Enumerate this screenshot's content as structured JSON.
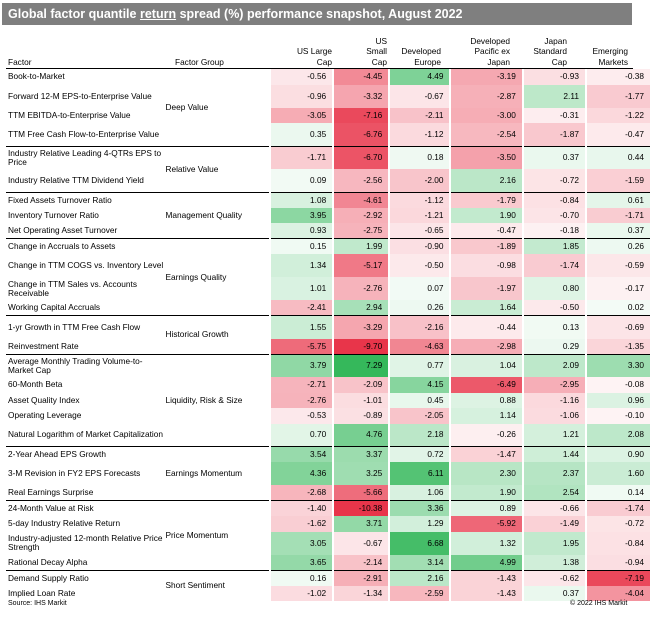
{
  "title_prefix": "Global factor quantile ",
  "title_underlined": "return",
  "title_suffix": " spread (%) performance snapshot, August 2022",
  "columns": [
    {
      "line1": "",
      "line2": "US Large",
      "line3": "Cap"
    },
    {
      "line1": "US",
      "line2": "Small",
      "line3": "Cap"
    },
    {
      "line1": "",
      "line2": "Developed",
      "line3": "Europe"
    },
    {
      "line1": "Developed",
      "line2": "Pacific ex",
      "line3": "Japan"
    },
    {
      "line1": "Japan",
      "line2": "Standard",
      "line3": "Cap"
    },
    {
      "line1": "",
      "line2": "Emerging",
      "line3": "Markets"
    }
  ],
  "factor_header": "Factor",
  "group_header": "Factor Group",
  "groups": [
    {
      "name": "Deep Value",
      "rows": [
        {
          "factor": "Book-to-Market",
          "values": [
            "-0.56",
            "-4.45",
            "4.49",
            "-3.19",
            "-0.93",
            "-0.38"
          ]
        },
        {
          "factor": "Forward 12-M EPS-to-Enterprise Value",
          "values": [
            "-0.96",
            "-3.32",
            "-0.67",
            "-2.87",
            "2.11",
            "-1.77"
          ]
        },
        {
          "factor": "TTM EBITDA-to-Enterprise Value",
          "values": [
            "-3.05",
            "-7.16",
            "-2.11",
            "-3.00",
            "-0.31",
            "-1.22"
          ]
        },
        {
          "factor": "TTM Free Cash Flow-to-Enterprise Value",
          "values": [
            "0.35",
            "-6.76",
            "-1.12",
            "-2.54",
            "-1.87",
            "-0.47"
          ]
        }
      ]
    },
    {
      "name": "Relative Value",
      "rows": [
        {
          "factor": "Industry Relative Leading 4-QTRs EPS to Price",
          "values": [
            "-1.71",
            "-6.70",
            "0.18",
            "-3.50",
            "0.37",
            "0.44"
          ]
        },
        {
          "factor": "Industry Relative TTM Dividend Yield",
          "values": [
            "0.09",
            "-2.56",
            "-2.00",
            "2.16",
            "-0.72",
            "-1.59"
          ]
        }
      ]
    },
    {
      "name": "Management Quality",
      "rows": [
        {
          "factor": "Fixed Assets Turnover Ratio",
          "values": [
            "1.08",
            "-4.61",
            "-1.12",
            "-1.79",
            "-0.84",
            "0.61"
          ]
        },
        {
          "factor": "Inventory Turnover Ratio",
          "values": [
            "3.95",
            "-2.92",
            "-1.21",
            "1.90",
            "-0.70",
            "-1.71"
          ]
        },
        {
          "factor": "Net Operating Asset Turnover",
          "values": [
            "0.93",
            "-2.75",
            "-0.65",
            "-0.47",
            "-0.18",
            "0.37"
          ]
        }
      ]
    },
    {
      "name": "Earnings Quality",
      "rows": [
        {
          "factor": "Change in Accruals to Assets",
          "values": [
            "0.15",
            "1.99",
            "-0.90",
            "-1.89",
            "1.85",
            "0.26"
          ]
        },
        {
          "factor": "Change in TTM COGS vs. Inventory Level",
          "values": [
            "1.34",
            "-5.17",
            "-0.50",
            "-0.98",
            "-1.74",
            "-0.59"
          ]
        },
        {
          "factor": "Change in TTM Sales vs. Accounts Receivable",
          "values": [
            "1.01",
            "-2.76",
            "0.07",
            "-1.97",
            "0.80",
            "-0.17"
          ]
        },
        {
          "factor": "Working Capital Accruals",
          "values": [
            "-2.41",
            "2.94",
            "0.26",
            "1.64",
            "-0.50",
            "0.02"
          ]
        }
      ]
    },
    {
      "name": "Historical Growth",
      "rows": [
        {
          "factor": "1-yr Growth in TTM Free Cash Flow",
          "values": [
            "1.55",
            "-3.29",
            "-2.16",
            "-0.44",
            "0.13",
            "-0.69"
          ]
        },
        {
          "factor": "Reinvestment Rate",
          "values": [
            "-5.75",
            "-9.70",
            "-4.63",
            "-2.98",
            "0.29",
            "-1.35"
          ]
        }
      ]
    },
    {
      "name": "Liquidity, Risk & Size",
      "rows": [
        {
          "factor": "Average Monthly Trading Volume-to-Market Cap",
          "values": [
            "3.79",
            "7.29",
            "0.77",
            "1.04",
            "2.09",
            "3.30"
          ]
        },
        {
          "factor": "60-Month Beta",
          "values": [
            "-2.71",
            "-2.09",
            "4.15",
            "-6.49",
            "-2.95",
            "-0.08"
          ]
        },
        {
          "factor": "Asset Quality Index",
          "values": [
            "-2.76",
            "-1.01",
            "0.45",
            "0.88",
            "-1.16",
            "0.96"
          ]
        },
        {
          "factor": "Operating Leverage",
          "values": [
            "-0.53",
            "-0.89",
            "-2.05",
            "1.14",
            "-1.06",
            "-0.10"
          ]
        },
        {
          "factor": "Natural Logarithm of Market Capitalization",
          "values": [
            "0.70",
            "4.76",
            "2.18",
            "-0.26",
            "1.21",
            "2.08"
          ]
        }
      ]
    },
    {
      "name": "Earnings Momentum",
      "rows": [
        {
          "factor": "2-Year Ahead EPS Growth",
          "values": [
            "3.54",
            "3.37",
            "0.72",
            "-1.47",
            "1.44",
            "0.90"
          ]
        },
        {
          "factor": "3-M Revision in FY2 EPS Forecasts",
          "values": [
            "4.36",
            "3.25",
            "6.11",
            "2.30",
            "2.37",
            "1.60"
          ]
        },
        {
          "factor": "Real Earnings Surprise",
          "values": [
            "-2.68",
            "-5.66",
            "1.06",
            "1.90",
            "2.54",
            "0.14"
          ]
        }
      ]
    },
    {
      "name": "Price Momentum",
      "rows": [
        {
          "factor": "24-Month Value at Risk",
          "values": [
            "-1.40",
            "-10.38",
            "3.36",
            "0.89",
            "-0.66",
            "-1.74"
          ]
        },
        {
          "factor": "5-day Industry Relative Return",
          "values": [
            "-1.62",
            "3.71",
            "1.29",
            "-5.92",
            "-1.49",
            "-0.72"
          ]
        },
        {
          "factor": "Industry-adjusted 12-month Relative Price Strength",
          "values": [
            "3.05",
            "-0.67",
            "6.68",
            "1.32",
            "1.95",
            "-0.84"
          ]
        },
        {
          "factor": "Rational Decay Alpha",
          "values": [
            "3.65",
            "-2.14",
            "3.14",
            "4.99",
            "1.38",
            "-0.94"
          ]
        }
      ]
    },
    {
      "name": "Short Sentiment",
      "rows": [
        {
          "factor": "Demand Supply Ratio",
          "values": [
            "0.16",
            "-2.91",
            "2.16",
            "-1.43",
            "-0.62",
            "-7.19"
          ]
        },
        {
          "factor": "Implied Loan Rate",
          "values": [
            "-1.02",
            "-1.34",
            "-2.59",
            "-1.43",
            "0.37",
            "-4.04"
          ]
        }
      ]
    }
  ],
  "footer_source": "Source: IHS Markit",
  "footer_copyright": "© 2022 IHS Markit",
  "colors": {
    "positive": "#22b14c",
    "negative": "#e8354a",
    "title_bg": "#7f7f7f"
  }
}
